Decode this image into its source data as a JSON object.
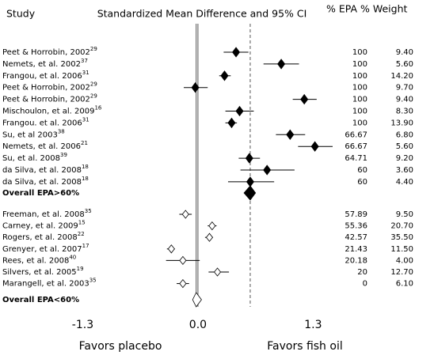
{
  "chart_data": {
    "type": "forest",
    "header": {
      "study": "Study",
      "title": "Standardized Mean Difference and 95% CI",
      "epa": "% EPA",
      "weight": "% Weight"
    },
    "xlim": [
      -1.34,
      1.52
    ],
    "xticks": [
      -1.3,
      {
        "value": 0,
        "label": "0.0"
      },
      1.3
    ],
    "left_label": "Favors placebo",
    "right_label": "Favors fish oil",
    "groups": [
      {
        "filled": true,
        "studies": [
          {
            "name": "Peet & Horrobin, 2002",
            "ref": "29",
            "effect": 0.43,
            "lo": 0.29,
            "hi": 0.57,
            "epa": "100",
            "weight": "9.40"
          },
          {
            "name": "Nemets, et al. 2002",
            "ref": "37",
            "effect": 0.94,
            "lo": 0.74,
            "hi": 1.14,
            "epa": "100",
            "weight": "5.60"
          },
          {
            "name": "Frangou, et al. 2006",
            "ref": "31",
            "effect": 0.3,
            "lo": 0.24,
            "hi": 0.37,
            "epa": "100",
            "weight": "14.20"
          },
          {
            "name": "Peet & Horrobin, 2002",
            "ref": "29",
            "effect": -0.03,
            "lo": -0.16,
            "hi": 0.11,
            "epa": "100",
            "weight": "9.70"
          },
          {
            "name": "Peet & Horrobin, 2002",
            "ref": "29",
            "effect": 1.2,
            "lo": 1.07,
            "hi": 1.34,
            "epa": "100",
            "weight": "9.40"
          },
          {
            "name": "Mischoulon, et al. 2009",
            "ref": "16",
            "effect": 0.47,
            "lo": 0.31,
            "hi": 0.63,
            "epa": "100",
            "weight": "8.30"
          },
          {
            "name": "Frangou. et al. 2006",
            "ref": "31",
            "effect": 0.38,
            "lo": 0.31,
            "hi": 0.44,
            "epa": "100",
            "weight": "13.90"
          },
          {
            "name": "Su, et al 2003",
            "ref": "38",
            "effect": 1.04,
            "lo": 0.88,
            "hi": 1.21,
            "epa": "66.67",
            "weight": "6.80"
          },
          {
            "name": "Nemets, et al. 2006",
            "ref": "21",
            "effect": 1.32,
            "lo": 1.13,
            "hi": 1.52,
            "epa": "66.67",
            "weight": "5.60"
          },
          {
            "name": "Su, et al. 2008",
            "ref": "39",
            "effect": 0.58,
            "lo": 0.46,
            "hi": 0.7,
            "epa": "64.71",
            "weight": "9.20"
          },
          {
            "name": "da Silva, et al. 2008",
            "ref": "18",
            "effect": 0.78,
            "lo": 0.48,
            "hi": 1.09,
            "epa": "60",
            "weight": "3.60"
          },
          {
            "name": "da Silva, et al. 2008",
            "ref": "18",
            "effect": 0.59,
            "lo": 0.34,
            "hi": 0.86,
            "epa": "60",
            "weight": "4.40"
          }
        ],
        "overall": {
          "label": "Overall EPA>60%",
          "effect": 0.59,
          "lo": 0.52,
          "hi": 0.65
        }
      },
      {
        "filled": false,
        "studies": [
          {
            "name": "Freeman, et al. 2008",
            "ref": "35",
            "effect": -0.14,
            "lo": -0.21,
            "hi": -0.07,
            "epa": "57.89",
            "weight": "9.50"
          },
          {
            "name": "Carney, et al. 2009",
            "ref": "15",
            "effect": 0.16,
            "lo": 0.11,
            "hi": 0.21,
            "epa": "55.36",
            "weight": "20.70"
          },
          {
            "name": "Rogers, et al. 2008",
            "ref": "22",
            "effect": 0.13,
            "lo": 0.08,
            "hi": 0.17,
            "epa": "42.57",
            "weight": "35.50"
          },
          {
            "name": "Grenyer, et al. 2007",
            "ref": "17",
            "effect": -0.3,
            "lo": -0.35,
            "hi": -0.26,
            "epa": "21.43",
            "weight": "11.50"
          },
          {
            "name": "Rees, et al. 2008",
            "ref": "40",
            "effect": -0.17,
            "lo": -0.36,
            "hi": 0.02,
            "epa": "20.18",
            "weight": "4.00"
          },
          {
            "name": "Silvers, et al. 2005",
            "ref": "19",
            "effect": 0.22,
            "lo": 0.12,
            "hi": 0.35,
            "epa": "20",
            "weight": "12.70"
          },
          {
            "name": "Marangell, et al. 2003",
            "ref": "35",
            "effect": -0.17,
            "lo": -0.24,
            "hi": -0.1,
            "epa": "0",
            "weight": "6.10"
          }
        ],
        "overall": {
          "label": "Overall EPA<60%",
          "effect": -0.02,
          "lo": -0.06,
          "hi": 0.04
        }
      }
    ]
  }
}
